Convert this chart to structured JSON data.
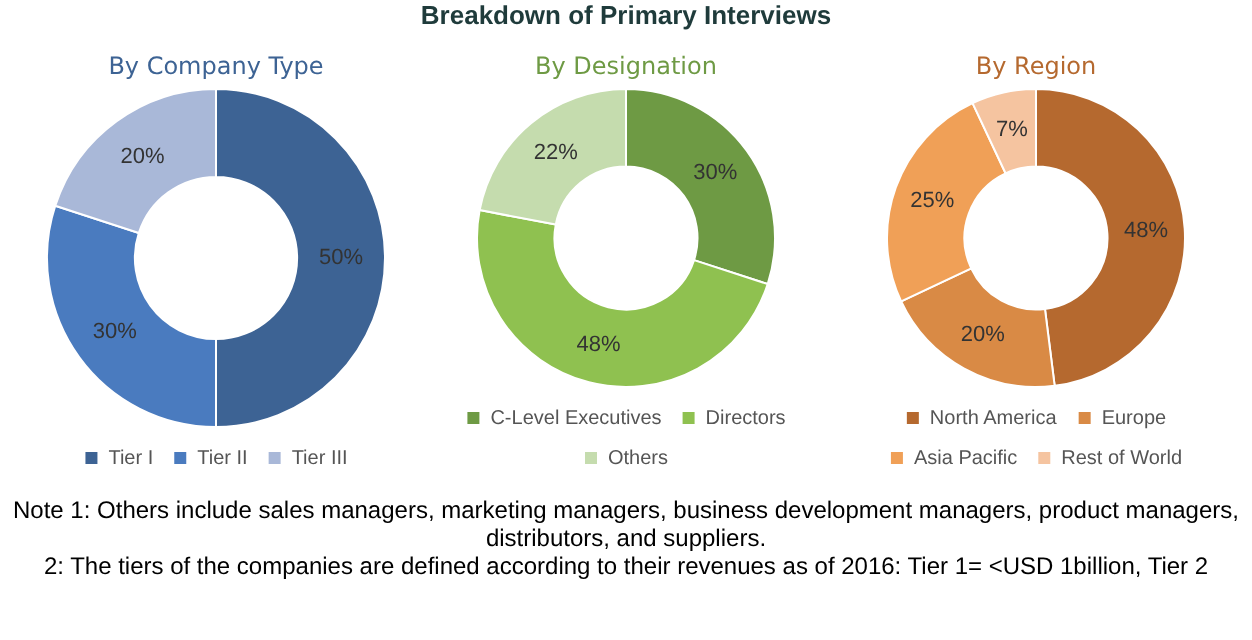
{
  "chart_data": [
    {
      "type": "donut",
      "title": "By Company Type",
      "annotations": [
        "Breakdown of Primary Interviews"
      ],
      "categories": [
        "Tier I",
        "Tier II",
        "Tier III"
      ],
      "values": [
        50,
        30,
        20
      ],
      "value_labels": [
        "50%",
        "30%",
        "20%"
      ],
      "colors": [
        "#3d6394",
        "#4a7bbf",
        "#a9b8d8"
      ],
      "legend": "bottom"
    },
    {
      "type": "donut",
      "title": "By Designation",
      "categories": [
        "C-Level Executives",
        "Directors",
        "Others"
      ],
      "values": [
        30,
        48,
        22
      ],
      "value_labels": [
        "30%",
        "48%",
        "22%"
      ],
      "colors": [
        "#6e9a44",
        "#8fc150",
        "#c5dcae"
      ],
      "legend": "bottom"
    },
    {
      "type": "donut",
      "title": "By Region",
      "annotations": [
        "Note 1: Others include sales managers, marketing managers, business development managers, product managers, distributors, and suppliers.",
        "2: The tiers of the companies are defined according to their revenues as of 2016: Tier 1= <USD 1billion, Tier 2"
      ],
      "categories": [
        "North America",
        "Europe",
        "Asia Pacific",
        "Rest of World"
      ],
      "values": [
        48,
        20,
        25,
        7
      ],
      "value_labels": [
        "48%",
        "20%",
        "25%",
        "7%"
      ],
      "colors": [
        "#b5692f",
        "#d98a45",
        "#f0a057",
        "#f5c4a0"
      ],
      "legend": "bottom"
    }
  ]
}
